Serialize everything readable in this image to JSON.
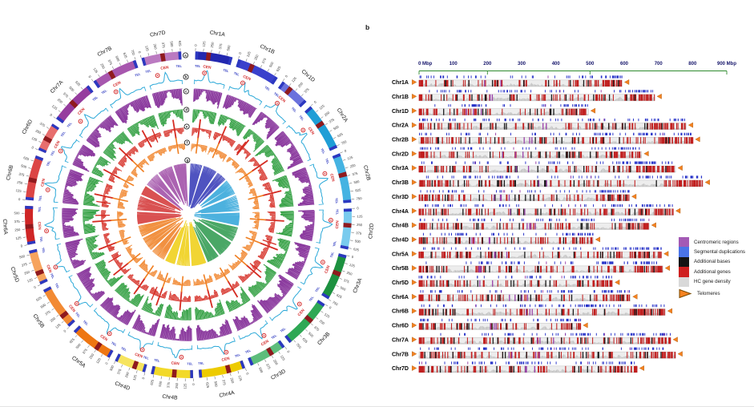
{
  "figure": {
    "panel_b_label": "b"
  },
  "colors": {
    "group_shades": {
      "1": {
        "A": "#2328b0",
        "B": "#3a41cc",
        "D": "#6a71dd"
      },
      "2": {
        "A": "#1f9ed6",
        "B": "#45b3e2",
        "D": "#79cbee"
      },
      "3": {
        "A": "#1d9140",
        "B": "#2fa855",
        "D": "#5dbd7b"
      },
      "4": {
        "A": "#edcb00",
        "B": "#f2d92a",
        "D": "#f6e45e"
      },
      "5": {
        "A": "#ee7612",
        "B": "#f28a33",
        "D": "#f6a35d"
      },
      "6": {
        "A": "#cf2626",
        "B": "#dc4545",
        "D": "#e76e6e"
      },
      "7": {
        "A": "#963c9e",
        "B": "#a757ae",
        "D": "#bb7ac1"
      }
    },
    "cen_block": "#8f1a1e",
    "tel_block": "#2c38c0",
    "cen_text": "#d42b2b",
    "tel_text": "#2c38c0",
    "track_line_blue": "#2aa8d8",
    "track_hist_purple": "#8b3a9e",
    "track_hist_green": "#2f9e3f",
    "track_hist_red": "#d52b22",
    "track_hist_orange": "#f07f22",
    "axis_green": "#2e8b2e",
    "axis_text": "#16166b",
    "tick_blue": "#2531c8",
    "tick_purple": "#993fa8",
    "tick_red": "#c11f1f",
    "tick_black": "#1b1b1b",
    "bar_bg": "#ededed",
    "bar_density_gray": "#c2c2c2",
    "telomere_orange": "#f58220"
  },
  "chart_data": [
    {
      "panel": "a",
      "type": "circos",
      "description": "Circular overview of the 21 bread wheat chromosomes. Track a: chromosome ideograms with CEN (dark red) and TEL (blue) blocks and Mbp tick ruler; track b: sky-blue line with peaks at centromeres; track c: purple density histogram; track d: green density histogram; track e: red density histogram with centromeric spikes; track f: orange density histogram; track g: inner link fans colored by homoeologous group.",
      "track_letters": [
        "a",
        "b",
        "c",
        "d",
        "e",
        "f",
        "g"
      ],
      "tick_interval_mbp": 125,
      "cen_label": "CEN",
      "tel_label": "TEL",
      "chromosomes": [
        {
          "name": "Chr1A",
          "group": 1,
          "genome": "A",
          "length_mbp": 594,
          "cen_mbp": 213
        },
        {
          "name": "Chr1B",
          "group": 1,
          "genome": "B",
          "length_mbp": 689,
          "cen_mbp": 240
        },
        {
          "name": "Chr1D",
          "group": 1,
          "genome": "D",
          "length_mbp": 495,
          "cen_mbp": 166
        },
        {
          "name": "Chr2A",
          "group": 2,
          "genome": "A",
          "length_mbp": 781,
          "cen_mbp": 326
        },
        {
          "name": "Chr2B",
          "group": 2,
          "genome": "B",
          "length_mbp": 801,
          "cen_mbp": 344
        },
        {
          "name": "Chr2D",
          "group": 2,
          "genome": "D",
          "length_mbp": 651,
          "cen_mbp": 268
        },
        {
          "name": "Chr3A",
          "group": 3,
          "genome": "A",
          "length_mbp": 750,
          "cen_mbp": 317
        },
        {
          "name": "Chr3B",
          "group": 3,
          "genome": "B",
          "length_mbp": 830,
          "cen_mbp": 345
        },
        {
          "name": "Chr3D",
          "group": 3,
          "genome": "D",
          "length_mbp": 615,
          "cen_mbp": 240
        },
        {
          "name": "Chr4A",
          "group": 4,
          "genome": "A",
          "length_mbp": 744,
          "cen_mbp": 265
        },
        {
          "name": "Chr4B",
          "group": 4,
          "genome": "B",
          "length_mbp": 673,
          "cen_mbp": 303
        },
        {
          "name": "Chr4D",
          "group": 4,
          "genome": "D",
          "length_mbp": 509,
          "cen_mbp": 182
        },
        {
          "name": "Chr5A",
          "group": 5,
          "genome": "A",
          "length_mbp": 709,
          "cen_mbp": 252
        },
        {
          "name": "Chr5B",
          "group": 5,
          "genome": "B",
          "length_mbp": 713,
          "cen_mbp": 199
        },
        {
          "name": "Chr5D",
          "group": 5,
          "genome": "D",
          "length_mbp": 566,
          "cen_mbp": 185
        },
        {
          "name": "Chr6A",
          "group": 6,
          "genome": "A",
          "length_mbp": 618,
          "cen_mbp": 288
        },
        {
          "name": "Chr6B",
          "group": 6,
          "genome": "B",
          "length_mbp": 720,
          "cen_mbp": 324
        },
        {
          "name": "Chr6D",
          "group": 6,
          "genome": "D",
          "length_mbp": 473,
          "cen_mbp": 213
        },
        {
          "name": "Chr7A",
          "group": 7,
          "genome": "A",
          "length_mbp": 736,
          "cen_mbp": 360
        },
        {
          "name": "Chr7B",
          "group": 7,
          "genome": "B",
          "length_mbp": 750,
          "cen_mbp": 308
        },
        {
          "name": "Chr7D",
          "group": 7,
          "genome": "D",
          "length_mbp": 638,
          "cen_mbp": 339
        }
      ]
    },
    {
      "panel": "b",
      "type": "ideogram",
      "description": "Linear ideograms of the 21 wheat chromosomes: blue segmental-duplication ticks above each bar; bar shows HC gene density (gray) with additional genes (red), additional bases (black) and centromeric regions (purple); orange triangles mark telomeres.",
      "axis": {
        "unit": "Mbp",
        "min": 0,
        "max": 900,
        "label_step": 100,
        "labels": [
          "0 Mbp",
          "100",
          "200",
          "300",
          "400",
          "500",
          "600",
          "700",
          "800",
          "900 Mbp"
        ],
        "major_ticks_mbp": [
          0,
          200,
          500,
          900
        ]
      },
      "row_labels": [
        "Chr1A",
        "Chr1B",
        "Chr1D",
        "Chr2A",
        "Chr2B",
        "Chr2D",
        "Chr3A",
        "Chr3B",
        "Chr3D",
        "Chr4A",
        "Chr4B",
        "Chr4D",
        "Chr5A",
        "Chr5B",
        "Chr5D",
        "Chr6A",
        "Chr6B",
        "Chr6D",
        "Chr7A",
        "Chr7B",
        "Chr7D"
      ],
      "legend": [
        {
          "label": "Centromeric regions",
          "color": "#a35ab5",
          "shape": "square"
        },
        {
          "label": "Segmental duplications",
          "color": "#4a74e8",
          "shape": "square"
        },
        {
          "label": "Additional bases",
          "color": "#141414",
          "shape": "square"
        },
        {
          "label": "Additional genes",
          "color": "#cf2020",
          "shape": "square"
        },
        {
          "label": "HC gene density",
          "color": "#d9d9d9",
          "shape": "square"
        },
        {
          "label": "Telomeres",
          "color": "#f58220",
          "shape": "triangle"
        }
      ]
    }
  ]
}
